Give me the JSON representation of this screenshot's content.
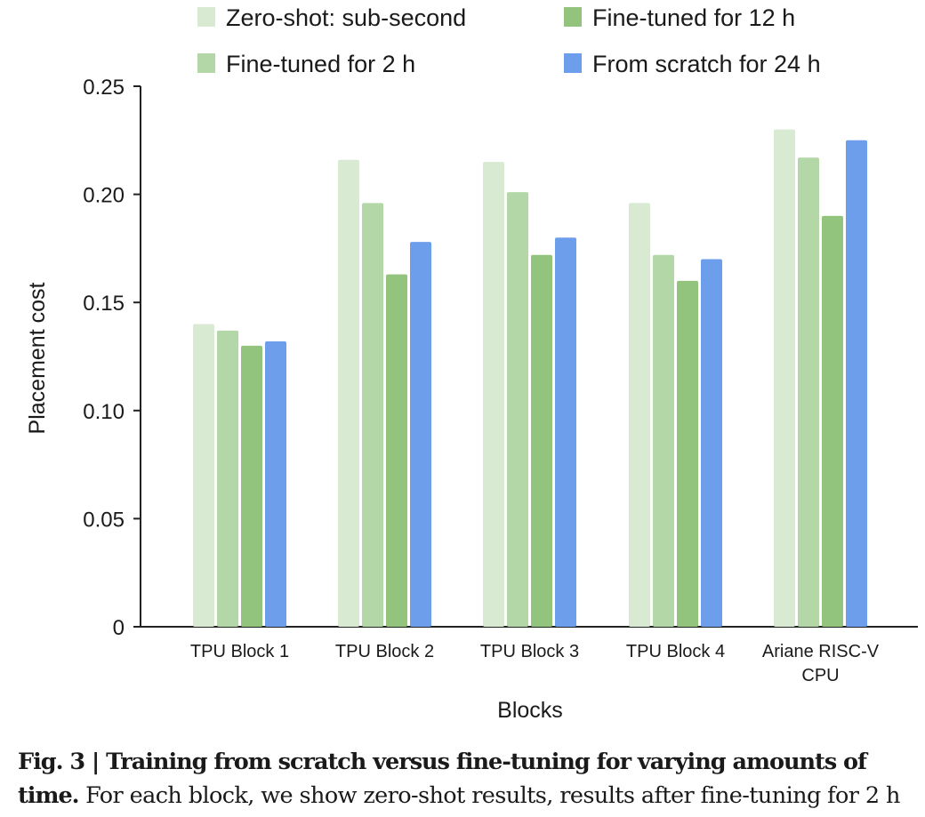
{
  "chart_data": {
    "type": "bar",
    "title": "",
    "xlabel": "Blocks",
    "ylabel": "Placement cost",
    "ylim": [
      0,
      0.25
    ],
    "yticks": [
      0,
      0.05,
      0.1,
      0.15,
      0.2,
      0.25
    ],
    "ytick_labels": [
      "0",
      "0.05",
      "0.10",
      "0.15",
      "0.20",
      "0.25"
    ],
    "categories": [
      [
        "TPU Block 1"
      ],
      [
        "TPU Block 2"
      ],
      [
        "TPU Block 3"
      ],
      [
        "TPU Block 4"
      ],
      [
        "Ariane RISC-V",
        "CPU"
      ]
    ],
    "series": [
      {
        "name": "Zero-shot: sub-second",
        "color": "#d9ead3",
        "values": [
          0.14,
          0.216,
          0.215,
          0.196,
          0.23
        ]
      },
      {
        "name": "Fine-tuned for 2 h",
        "color": "#b4d7a8",
        "values": [
          0.137,
          0.196,
          0.201,
          0.172,
          0.217
        ]
      },
      {
        "name": "Fine-tuned for 12 h",
        "color": "#93c47d",
        "values": [
          0.13,
          0.163,
          0.172,
          0.16,
          0.19
        ]
      },
      {
        "name": "From scratch for 24 h",
        "color": "#6d9eeb",
        "values": [
          0.132,
          0.178,
          0.18,
          0.17,
          0.225
        ]
      }
    ],
    "legend_placement": "top"
  },
  "caption": {
    "bold": "Fig. 3 | Training from scratch versus fine-tuning for varying amounts of time.",
    "bold_line1": "Fig. 3 | Training from scratch versus fine-tuning for varying amounts of",
    "bold_line2": "time.",
    "rest": " For each block, we show zero-shot results, results after fine-tuning for 2 h"
  }
}
